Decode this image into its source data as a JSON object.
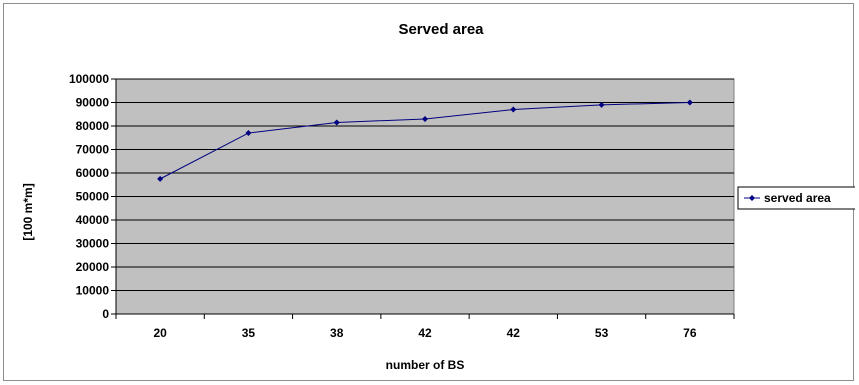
{
  "chart_data": {
    "type": "line",
    "title": "Served area",
    "xlabel": "number of BS",
    "ylabel": "[100 m*m]",
    "categories": [
      "20",
      "35",
      "38",
      "42",
      "42",
      "53",
      "76"
    ],
    "series": [
      {
        "name": "served area",
        "values": [
          57500,
          77000,
          81500,
          83000,
          87000,
          89000,
          90000
        ]
      }
    ],
    "ylim": [
      0,
      100000
    ],
    "yticks": [
      "0",
      "10000",
      "20000",
      "30000",
      "40000",
      "50000",
      "60000",
      "70000",
      "80000",
      "90000",
      "100000"
    ],
    "grid": "horizontal",
    "legend_position": "right",
    "colors": {
      "plot_background": "#c0c0c0",
      "series": "#000080",
      "gridline": "#000000"
    }
  }
}
